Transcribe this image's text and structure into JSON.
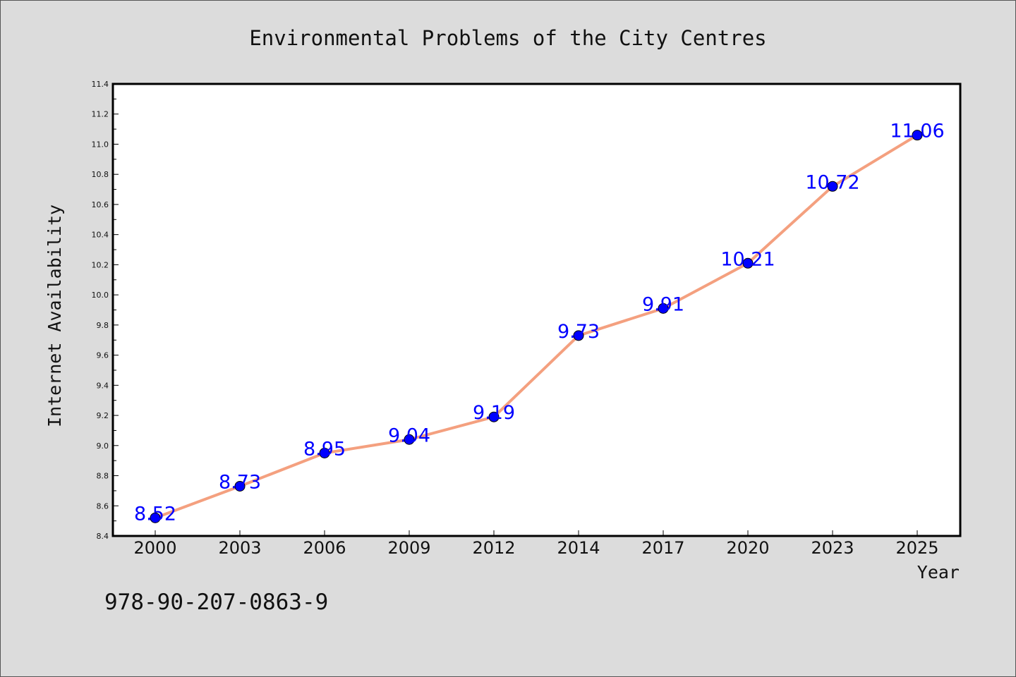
{
  "note": "978-90-207-0863-9",
  "colors": {
    "background": "#dcdcdc",
    "plot_background": "#ffffff",
    "line": "#f4a07f",
    "marker": "#0000ff",
    "data_label": "#0000ff"
  },
  "chart_data": {
    "type": "line",
    "title": "Environmental Problems of the City Centres",
    "xlabel": "Year",
    "ylabel": "Internet Availability",
    "categories": [
      "2000",
      "2003",
      "2006",
      "2009",
      "2012",
      "2014",
      "2017",
      "2020",
      "2023",
      "2025"
    ],
    "series": [
      {
        "values": [
          8.52,
          8.73,
          8.95,
          9.04,
          9.19,
          9.73,
          9.91,
          10.21,
          10.72,
          11.06
        ]
      }
    ],
    "data_labels": [
      "8.52",
      "8.73",
      "8.95",
      "9.04",
      "9.19",
      "9.73",
      "9.91",
      "10.21",
      "10.72",
      "11.06"
    ],
    "ylim": [
      8.4,
      11.4
    ],
    "yticks": [
      "8.4",
      "8.6",
      "8.8",
      "9.0",
      "9.2",
      "9.4",
      "9.6",
      "9.8",
      "10.0",
      "10.2",
      "10.4",
      "10.6",
      "10.8",
      "11.0",
      "11.2",
      "11.4"
    ],
    "grid": false,
    "legend": "none"
  }
}
